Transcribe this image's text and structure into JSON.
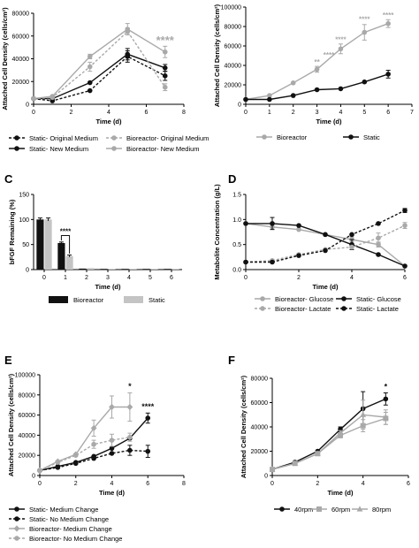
{
  "colors": {
    "black": "#111111",
    "gray": "#a9a9a9",
    "lightgray": "#c4c4c4"
  },
  "chart_data": [
    {
      "id": "A",
      "panel_label": "",
      "type": "line",
      "title": "",
      "xlabel": "Time (d)",
      "ylabel": "Attached Cell Density (cells/cm²)",
      "xlim": [
        0,
        8
      ],
      "ylim": [
        0,
        80000
      ],
      "xticks": [
        "0",
        "2",
        "4",
        "6",
        "8"
      ],
      "yticks": [
        "0",
        "20000",
        "40000",
        "60000",
        "80000"
      ],
      "series": [
        {
          "name": "Static- Original Medium",
          "color": "#111111",
          "dashed": true,
          "marker": "circle",
          "points": [
            [
              0,
              5000
            ],
            [
              1,
              3000
            ],
            [
              3,
              12000
            ],
            [
              5,
              42000
            ],
            [
              7,
              25000
            ]
          ],
          "err": [
            0,
            0,
            0,
            5000,
            4000
          ]
        },
        {
          "name": "Static- New Medium",
          "color": "#111111",
          "dashed": false,
          "marker": "circle",
          "points": [
            [
              0,
              5000
            ],
            [
              1,
              5000
            ],
            [
              3,
              19000
            ],
            [
              5,
              44000
            ],
            [
              7,
              32000
            ]
          ],
          "err": [
            0,
            0,
            0,
            5000,
            3000
          ]
        },
        {
          "name": "Bioreactor- Original Medium",
          "color": "#a9a9a9",
          "dashed": true,
          "marker": "circle",
          "points": [
            [
              0,
              5000
            ],
            [
              1,
              6000
            ],
            [
              3,
              33000
            ],
            [
              5,
              64000
            ],
            [
              7,
              15000
            ]
          ],
          "err": [
            0,
            0,
            4000,
            3000,
            3000
          ]
        },
        {
          "name": "Bioreactor- New Medium",
          "color": "#a9a9a9",
          "dashed": false,
          "marker": "circle",
          "points": [
            [
              0,
              5000
            ],
            [
              1,
              7000
            ],
            [
              3,
              42000
            ],
            [
              5,
              66000
            ],
            [
              7,
              46000
            ]
          ],
          "err": [
            0,
            0,
            2000,
            5000,
            5000
          ]
        }
      ],
      "annotations": [
        {
          "text": "****",
          "x": 7,
          "y": 53000,
          "color": "#a9a9a9",
          "size": 13
        }
      ]
    },
    {
      "id": "B",
      "panel_label": "",
      "type": "line",
      "title": "",
      "xlabel": "Time (d)",
      "ylabel": "Attached Cell Density (cells/cm²)",
      "xlim": [
        0,
        7
      ],
      "ylim": [
        0,
        100000
      ],
      "xticks": [
        "0",
        "1",
        "2",
        "3",
        "4",
        "5",
        "6",
        "7"
      ],
      "yticks": [
        "0",
        "20000",
        "40000",
        "60000",
        "80000",
        "100000"
      ],
      "series": [
        {
          "name": "Bioreactor",
          "color": "#a9a9a9",
          "dashed": false,
          "marker": "circle",
          "points": [
            [
              0,
              5000
            ],
            [
              1,
              9000
            ],
            [
              2,
              22000
            ],
            [
              3,
              36000
            ],
            [
              4,
              57000
            ],
            [
              5,
              74000
            ],
            [
              6,
              83000
            ]
          ],
          "err": [
            0,
            0,
            0,
            3000,
            5000,
            8000,
            4000
          ]
        },
        {
          "name": "Static",
          "color": "#111111",
          "dashed": false,
          "marker": "circle",
          "points": [
            [
              0,
              5000
            ],
            [
              1,
              5000
            ],
            [
              2,
              9000
            ],
            [
              3,
              15000
            ],
            [
              4,
              16000
            ],
            [
              5,
              23000
            ],
            [
              6,
              31000
            ]
          ],
          "err": [
            0,
            0,
            0,
            0,
            0,
            0,
            4000
          ]
        }
      ],
      "annotations": [
        {
          "text": "**",
          "x": 3,
          "y": 41000,
          "color": "#a9a9a9",
          "size": 8
        },
        {
          "text": "****",
          "x": 3.5,
          "y": 48000,
          "color": "#a9a9a9",
          "size": 8
        },
        {
          "text": "****",
          "x": 4,
          "y": 64000,
          "color": "#a9a9a9",
          "size": 8
        },
        {
          "text": "****",
          "x": 5,
          "y": 85000,
          "color": "#a9a9a9",
          "size": 8
        },
        {
          "text": "****",
          "x": 6,
          "y": 89000,
          "color": "#a9a9a9",
          "size": 8
        }
      ]
    },
    {
      "id": "C",
      "panel_label": "C",
      "type": "bar",
      "title": "",
      "xlabel": "Time (d)",
      "ylabel": "bFGF Remaining (%)",
      "ylim": [
        0,
        150
      ],
      "categories": [
        "0",
        "1",
        "2",
        "3",
        "4",
        "5",
        "6"
      ],
      "yticks": [
        "0",
        "50",
        "100",
        "150"
      ],
      "series": [
        {
          "name": "Bioreactor",
          "color": "#111111",
          "values": [
            100,
            53,
            2,
            1,
            0.5,
            0.3,
            0.2
          ],
          "err": [
            3,
            2,
            0,
            0,
            0,
            0,
            0
          ]
        },
        {
          "name": "Static",
          "color": "#c4c4c4",
          "values": [
            100,
            27,
            3,
            1,
            0.5,
            0.3,
            0.2
          ],
          "err": [
            3,
            2,
            0,
            0,
            0,
            0,
            0
          ]
        }
      ],
      "annotations": [
        {
          "text": "****",
          "category": 1,
          "y": 68
        }
      ]
    },
    {
      "id": "D",
      "panel_label": "D",
      "type": "line",
      "title": "",
      "xlabel": "Time (d)",
      "ylabel": "Metabolite Concentration (g/L)",
      "xlim": [
        0,
        6
      ],
      "ylim": [
        0,
        1.5
      ],
      "xticks": [
        "0",
        "2",
        "4",
        "6"
      ],
      "yticks": [
        "0.0",
        "0.5",
        "1.0",
        "1.5"
      ],
      "series": [
        {
          "name": "Bioreactor- Glucose",
          "color": "#a9a9a9",
          "dashed": false,
          "marker": "circle",
          "points": [
            [
              0,
              0.92
            ],
            [
              1,
              0.85
            ],
            [
              2,
              0.8
            ],
            [
              3,
              0.7
            ],
            [
              4,
              0.6
            ],
            [
              5,
              0.5
            ],
            [
              6,
              0.07
            ]
          ],
          "err": [
            0,
            0,
            0,
            0,
            0.05,
            0.05,
            0
          ]
        },
        {
          "name": "Static- Glucose",
          "color": "#111111",
          "dashed": false,
          "marker": "circle",
          "points": [
            [
              0,
              0.92
            ],
            [
              1,
              0.92
            ],
            [
              2,
              0.88
            ],
            [
              3,
              0.7
            ],
            [
              4,
              0.5
            ],
            [
              5,
              0.3
            ],
            [
              6,
              0.07
            ]
          ],
          "err": [
            0,
            0.12,
            0,
            0,
            0.1,
            0,
            0
          ]
        },
        {
          "name": "Bioreactor- Lactate",
          "color": "#a9a9a9",
          "dashed": true,
          "marker": "circle",
          "points": [
            [
              0,
              0.15
            ],
            [
              1,
              0.18
            ],
            [
              2,
              0.3
            ],
            [
              3,
              0.4
            ],
            [
              4,
              0.45
            ],
            [
              5,
              0.63
            ],
            [
              6,
              0.88
            ]
          ],
          "err": [
            0,
            0,
            0,
            0,
            0,
            0.1,
            0.06
          ]
        },
        {
          "name": "Static- Lactate",
          "color": "#111111",
          "dashed": true,
          "marker": "circle",
          "points": [
            [
              0,
              0.15
            ],
            [
              1,
              0.15
            ],
            [
              2,
              0.28
            ],
            [
              3,
              0.38
            ],
            [
              4,
              0.7
            ],
            [
              5,
              0.92
            ],
            [
              6,
              1.18
            ]
          ],
          "err": [
            0,
            0,
            0,
            0,
            0,
            0,
            0.04
          ]
        }
      ],
      "annotations": []
    },
    {
      "id": "E",
      "panel_label": "E",
      "type": "line",
      "title": "",
      "xlabel": "Time (d)",
      "ylabel": "Attached Cell Density (cells/cm²)",
      "xlim": [
        0,
        8
      ],
      "ylim": [
        0,
        100000
      ],
      "xticks": [
        "0",
        "2",
        "4",
        "6",
        "8"
      ],
      "yticks": [
        "0",
        "20000",
        "40000",
        "60000",
        "80000",
        "100000"
      ],
      "series": [
        {
          "name": "Static- Medium Change",
          "color": "#111111",
          "dashed": false,
          "marker": "circle",
          "points": [
            [
              0,
              5000
            ],
            [
              1,
              9000
            ],
            [
              2,
              13000
            ],
            [
              3,
              19000
            ],
            [
              4,
              27000
            ],
            [
              5,
              37000
            ],
            [
              6,
              57000
            ]
          ],
          "err": [
            0,
            0,
            0,
            0,
            0,
            0,
            5000
          ]
        },
        {
          "name": "Static- No Medium Change",
          "color": "#111111",
          "dashed": true,
          "marker": "circle",
          "points": [
            [
              0,
              5000
            ],
            [
              1,
              8000
            ],
            [
              2,
              12000
            ],
            [
              3,
              17000
            ],
            [
              4,
              22000
            ],
            [
              5,
              25000
            ],
            [
              6,
              24000
            ]
          ],
          "err": [
            0,
            0,
            0,
            0,
            0,
            5000,
            6000
          ]
        },
        {
          "name": "Bioreactor- Medium Change",
          "color": "#a9a9a9",
          "dashed": false,
          "marker": "diamond",
          "points": [
            [
              0,
              5000
            ],
            [
              1,
              14000
            ],
            [
              2,
              21000
            ],
            [
              3,
              47000
            ],
            [
              4,
              68000
            ],
            [
              5,
              68000
            ]
          ],
          "err": [
            0,
            0,
            0,
            8000,
            11000,
            14000
          ]
        },
        {
          "name": "Bioreactor- No Medium Change",
          "color": "#a9a9a9",
          "dashed": true,
          "marker": "circle",
          "points": [
            [
              0,
              5000
            ],
            [
              1,
              13000
            ],
            [
              2,
              20000
            ],
            [
              3,
              31000
            ],
            [
              4,
              35000
            ],
            [
              5,
              38000
            ]
          ],
          "err": [
            0,
            0,
            0,
            4000,
            6000,
            4000
          ]
        }
      ],
      "annotations": [
        {
          "text": "*",
          "x": 5,
          "y": 86000,
          "color": "#111111",
          "size": 9
        },
        {
          "text": "****",
          "x": 6,
          "y": 66000,
          "color": "#111111",
          "size": 9
        }
      ]
    },
    {
      "id": "F",
      "panel_label": "F",
      "type": "line",
      "title": "",
      "xlabel": "Time (d)",
      "ylabel": "Attached Cell Density (cells/cm²)",
      "xlim": [
        0,
        6
      ],
      "ylim": [
        0,
        80000
      ],
      "xticks": [
        "0",
        "2",
        "4",
        "6"
      ],
      "yticks": [
        "0",
        "20000",
        "40000",
        "60000",
        "80000"
      ],
      "series": [
        {
          "name": "40rpm",
          "color": "#111111",
          "dashed": false,
          "marker": "circle",
          "points": [
            [
              0,
              5000
            ],
            [
              1,
              11000
            ],
            [
              2,
              20000
            ],
            [
              3,
              38000
            ],
            [
              4,
              55000
            ],
            [
              5,
              63000
            ]
          ],
          "err": [
            0,
            0,
            0,
            2000,
            14000,
            5000
          ]
        },
        {
          "name": "60rpm",
          "color": "#a9a9a9",
          "dashed": false,
          "marker": "square",
          "points": [
            [
              0,
              5000
            ],
            [
              1,
              10000
            ],
            [
              2,
              18000
            ],
            [
              3,
              33000
            ],
            [
              4,
              41000
            ],
            [
              5,
              47000
            ]
          ],
          "err": [
            0,
            0,
            0,
            2000,
            5000,
            5000
          ]
        },
        {
          "name": "80rpm",
          "color": "#a9a9a9",
          "dashed": false,
          "marker": "triangle",
          "points": [
            [
              0,
              5000
            ],
            [
              1,
              10000
            ],
            [
              2,
              18000
            ],
            [
              3,
              35000
            ],
            [
              4,
              50000
            ],
            [
              5,
              48000
            ]
          ],
          "err": [
            0,
            0,
            0,
            2000,
            12000,
            6000
          ]
        }
      ],
      "annotations": [
        {
          "text": "*",
          "x": 5,
          "y": 71000,
          "color": "#111111",
          "size": 9
        }
      ]
    }
  ]
}
